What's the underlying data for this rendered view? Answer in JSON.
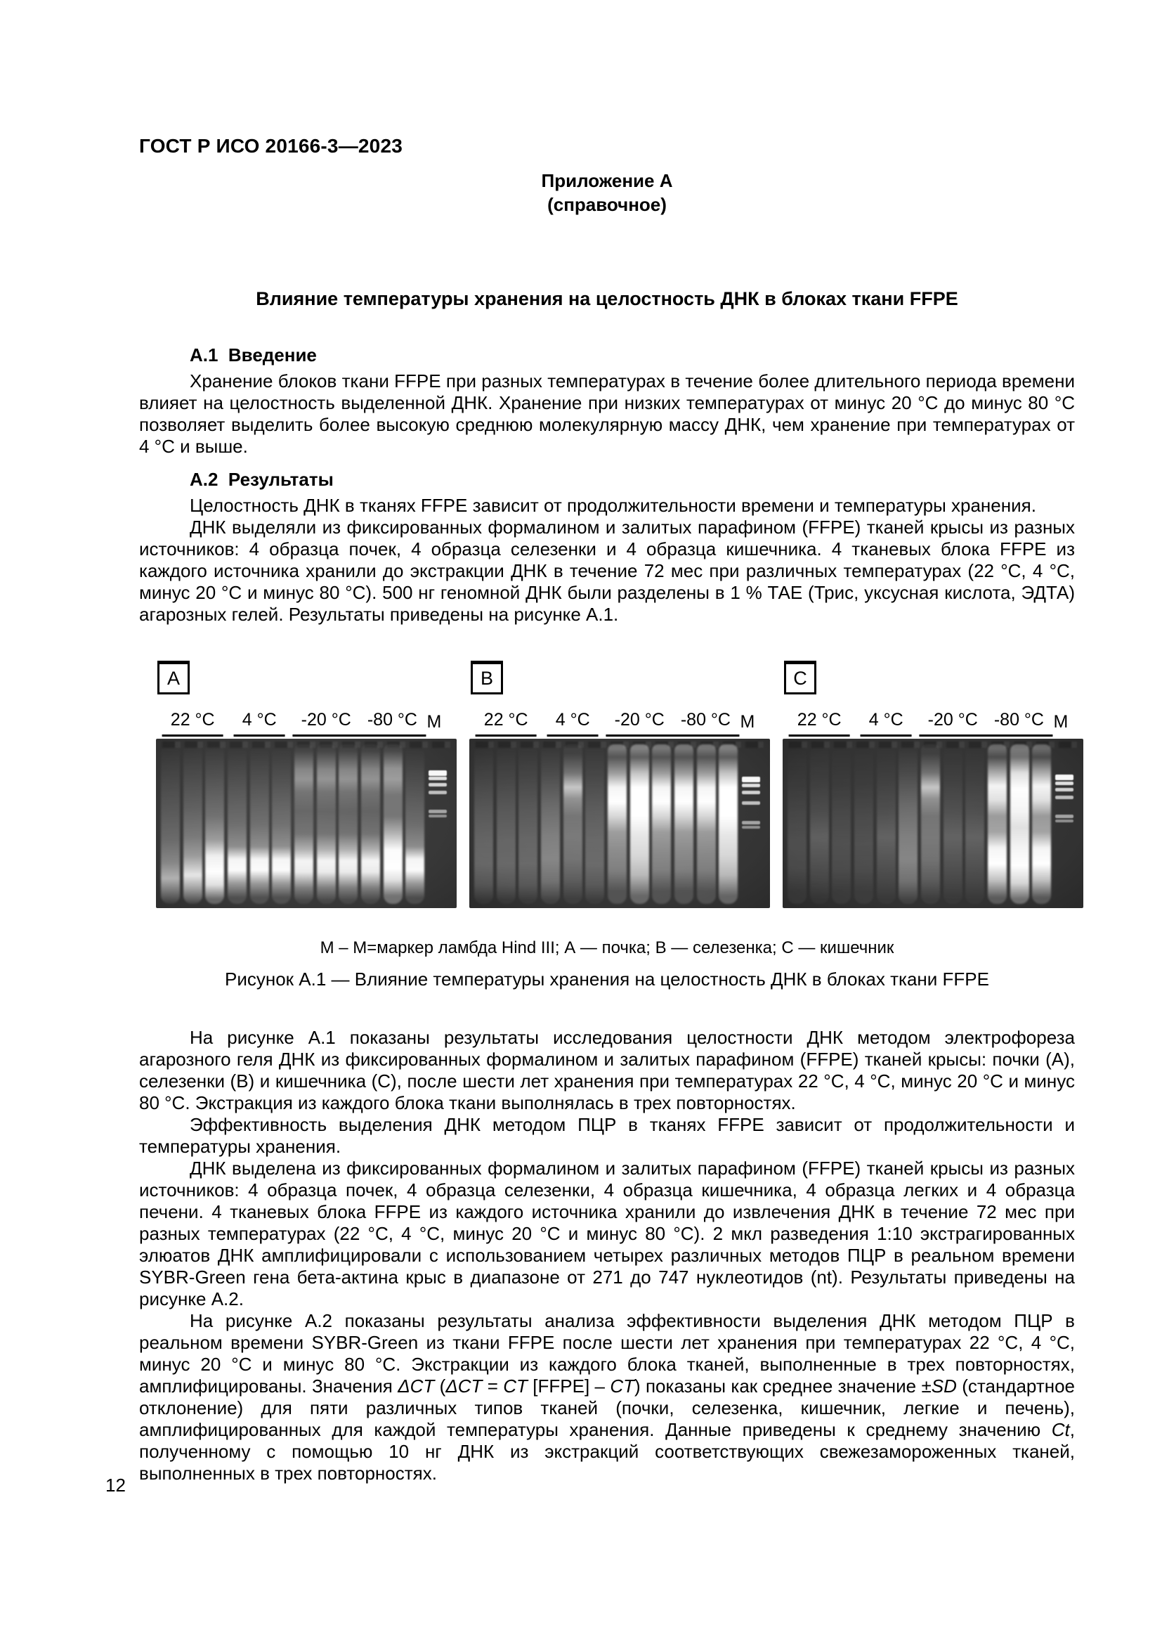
{
  "page": {
    "standard_code": "ГОСТ Р ИСО 20166-3—2023",
    "page_number": "12"
  },
  "appendix": {
    "label": "Приложение А",
    "type": "(справочное)",
    "title": "Влияние температуры хранения на целостность ДНК в блоках ткани FFPE"
  },
  "section_a1": {
    "heading": "А.1  Введение",
    "paragraph": "Хранение блоков ткани FFPE при разных температурах в течение более длительного периода времени влияет на целостность выделенной ДНК. Хранение при низких температурах от минус 20 °С до минус 80 °С позволяет выделить более высокую среднюю молекулярную массу ДНК, чем хранение при температурах от 4 °С и выше."
  },
  "section_a2": {
    "heading": "А.2  Результаты",
    "paragraph1": "Целостность ДНК в тканях FFPE зависит от продолжительности времени и температуры хранения.",
    "paragraph2": "ДНК выделяли из фиксированных формалином и залитых парафином (FFPE) тканей крысы из разных источников: 4 образца почек, 4 образца селезенки и 4 образца кишечника. 4 тканевых блока FFPE из каждого источника хранили до экстракции ДНК в течение 72 мес при различных температурах (22 °С, 4 °С, минус 20 °С и минус 80 °С). 500 нг геномной ДНК были разделены в 1 % ТАЕ (Трис, уксусная кислота, ЭДТА) агарозных гелей. Результаты приведены на рисунке А.1."
  },
  "figure": {
    "note": "М – М=маркер ламбда Hind III; А — почка; В — селезенка; С — кишечник",
    "caption": "Рисунок А.1 — Влияние температуры хранения на целостность ДНК в блоках ткани FFPE",
    "panels": [
      {
        "tag": "A",
        "lane_groups": [
          "22 °С",
          "4 °С",
          "-20 °С",
          "-80 °С"
        ],
        "marker_label": "M",
        "lanes": [
          "dim-bottomglow",
          "mid-bottomblob",
          "bright-bottom",
          "band-bottom",
          "band-bottom",
          "band-bottom",
          "topband-bandbottom",
          "topband-bandbottom",
          "topband-bandbottom",
          "topband-bandbottom",
          "topband-blob",
          "band-bottom"
        ],
        "marker_bands": [
          16,
          20,
          24,
          29,
          41,
          44
        ]
      },
      {
        "tag": "B",
        "lane_groups": [
          "22 °С",
          "4 °С",
          "-20 °С",
          "-80 °С"
        ],
        "marker_label": "M",
        "lanes": [
          "dim",
          "dim",
          "dim",
          "mid",
          "midband-top",
          "dim",
          "hiband",
          "hiband-full",
          "hiband",
          "hiband",
          "hiband",
          "hiband-full"
        ],
        "marker_bands": [
          20,
          24.5,
          29,
          35.5,
          48,
          51
        ]
      },
      {
        "tag": "C",
        "lane_groups": [
          "22 °С",
          "4 °С",
          "-20 °С",
          "-80 °С"
        ],
        "marker_label": "M",
        "lanes": [
          "faint",
          "faint-mid",
          "faint",
          "faint",
          "faint-mid",
          "mid",
          "midband-top",
          "faint-mid",
          "faint-mid",
          "hiband-blob",
          "bright-full",
          "hiband-blob"
        ],
        "marker_bands": [
          19,
          23,
          27,
          32,
          44,
          47
        ]
      }
    ]
  },
  "after_figure": {
    "paragraph1": "На рисунке А.1 показаны результаты исследования целостности ДНК методом электрофореза агарозного геля ДНК из фиксированных формалином и залитых парафином (FFPE) тканей крысы: почки (А), селезенки (В) и кишечника (С), после шести лет хранения при температурах 22 °С, 4 °С, минус 20 °С и минус 80 °С. Экстракция из каждого блока ткани выполнялась в трех повторностях.",
    "paragraph2": "Эффективность выделения ДНК методом ПЦР в тканях FFPE зависит от продолжительности и температуры хранения.",
    "paragraph3": "ДНК выделена из фиксированных формалином и залитых парафином (FFPE) тканей крысы из разных источников: 4 образца почек, 4 образца селезенки, 4 образца кишечника, 4 образца легких и 4 образца печени. 4 тканевых блока FFPE из каждого источника хранили до извлечения ДНК в течение 72 мес при разных температурах (22 °С, 4 °С, минус 20 °С и минус 80 °С). 2 мкл разведения 1:10 экстрагированных элюатов ДНК амплифицировали с использованием четырех различных методов ПЦР в реальном времени SYBR-Green гена бета-актина крыс в диапазоне от 271 до 747 нуклеотидов (nt). Результаты приведены на рисунке А.2.",
    "paragraph4_segments": [
      {
        "t": "На рисунке А.2 показаны результаты анализа эффективности выделения ДНК методом ПЦР в реальном времени SYBR-Green из ткани FFPE после шести лет хранения при температурах 22 °С, 4 °С, минус 20 °С и минус 80 °С. Экстракции из каждого блока тканей, выполненные в трех повторностях, амплифицированы. Значения "
      },
      {
        "t": "ΔCT",
        "i": true
      },
      {
        "t": " ("
      },
      {
        "t": "ΔCT",
        "i": true
      },
      {
        "t": " = "
      },
      {
        "t": "CT",
        "i": true
      },
      {
        "t": " [FFPE] – "
      },
      {
        "t": "CT",
        "i": true
      },
      {
        "t": ") показаны как среднее значение ±"
      },
      {
        "t": "SD",
        "i": true
      },
      {
        "t": " (стандартное отклонение) для пяти различных типов тканей (почки, селезенка, кишечник, легкие и печень), амплифицированных для каждой температуры хранения. Данные приведены к среднему значению "
      },
      {
        "t": "Ct",
        "i": true
      },
      {
        "t": ", полученному с помощью 10 нг ДНК из экстракций соответствующих свежезамороженных тканей, выполненных в трех повторностях."
      }
    ]
  }
}
